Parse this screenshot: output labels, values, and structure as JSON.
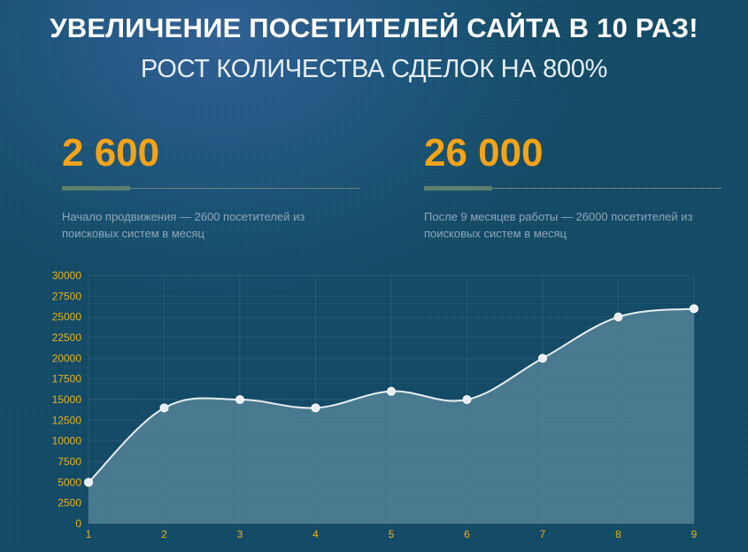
{
  "header": {
    "title": "УВЕЛИЧЕНИЕ ПОСЕТИТЕЛЕЙ САЙТА В 10 РАЗ!",
    "subtitle": "РОСТ КОЛИЧЕСТВА СДЕЛОК НА 800%"
  },
  "stats": [
    {
      "value": "2 600",
      "description": "Начало продвижения — 2600 посетителей из поисковых систем в месяц",
      "progress": 0.23
    },
    {
      "value": "26 000",
      "description": "После 9 месяцев работы — 26000 посетителей из поисковых систем в месяц",
      "progress": 0.23
    }
  ],
  "colors": {
    "accent": "#f4a319",
    "tick_label": "#e8b21c",
    "line": "#e8eef2",
    "area": "#5b8a9c"
  },
  "chart_data": {
    "type": "area",
    "x": [
      1,
      2,
      3,
      4,
      5,
      6,
      7,
      8,
      9
    ],
    "series": [
      {
        "values": [
          5000,
          14000,
          15000,
          14000,
          16000,
          15000,
          20000,
          25000,
          26000
        ]
      }
    ],
    "ylim": [
      0,
      30000
    ],
    "yticks": [
      0,
      2500,
      5000,
      7500,
      10000,
      12500,
      15000,
      17500,
      20000,
      22500,
      25000,
      27500,
      30000
    ],
    "grid": true,
    "smooth": true,
    "markers": true
  }
}
